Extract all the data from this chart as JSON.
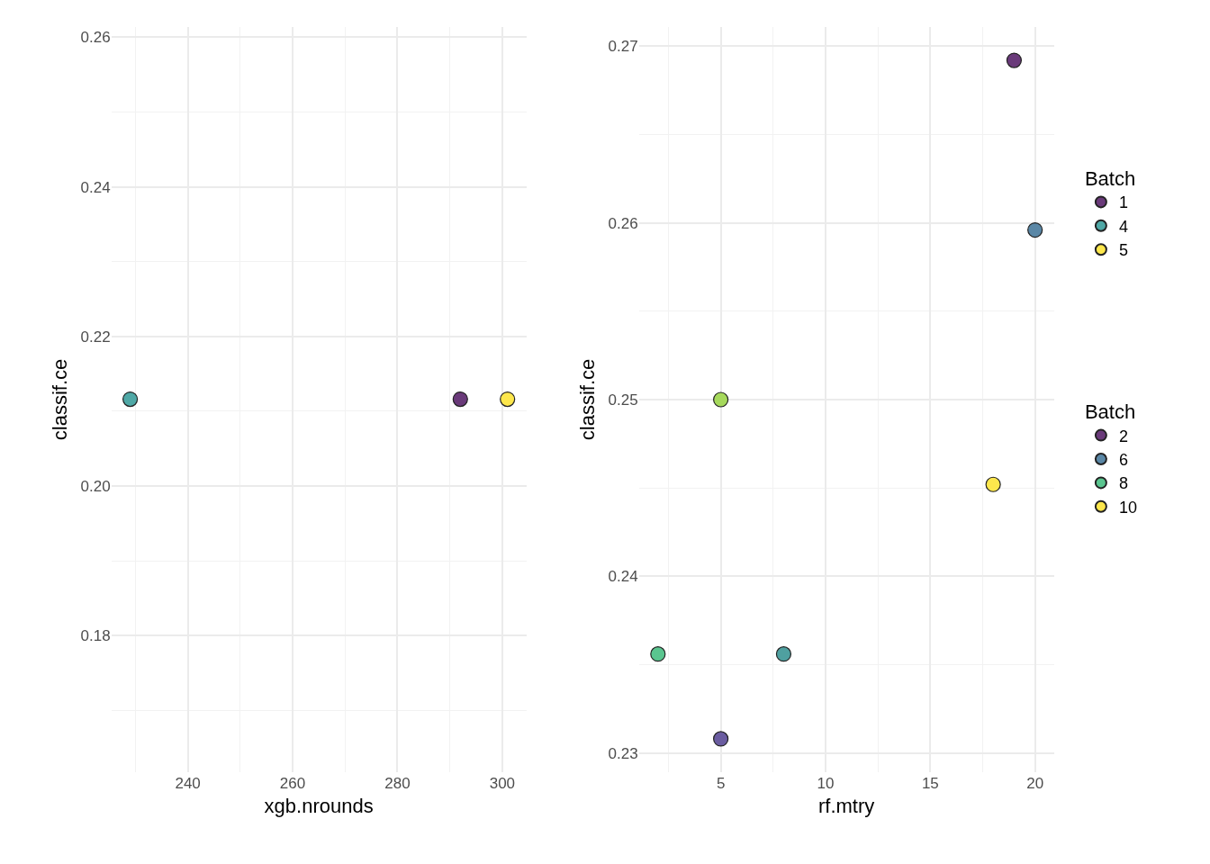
{
  "chart_data": [
    {
      "type": "scatter",
      "xlabel": "xgb.nrounds",
      "ylabel": "classif.ce",
      "xlim": [
        225.4,
        304.6
      ],
      "xticks": [
        240,
        260,
        280,
        300
      ],
      "ylim": [
        0.1617,
        0.2614
      ],
      "yticks": [
        0.18,
        {
          "value": 0.2,
          "label": "0.20"
        },
        0.22,
        0.24,
        0.26
      ],
      "grid": true,
      "legend": "right",
      "legend_title": "Batch",
      "marker": "circle",
      "series": [
        {
          "name": "1",
          "color": "#6a3a7a",
          "x": [
            292
          ],
          "values": [
            0.2116
          ]
        },
        {
          "name": "4",
          "color": "#4fa8a6",
          "x": [
            229
          ],
          "values": [
            0.2116
          ]
        },
        {
          "name": "5",
          "color": "#fde74c",
          "x": [
            301
          ],
          "values": [
            0.2116
          ]
        }
      ]
    },
    {
      "type": "scatter",
      "xlabel": "rf.mtry",
      "ylabel": "classif.ce",
      "xlim": [
        1.09,
        20.9
      ],
      "xticks": [
        5,
        10,
        15,
        20
      ],
      "ylim": [
        0.2289,
        0.2711
      ],
      "yticks": [
        0.23,
        0.24,
        0.25,
        0.26,
        0.27
      ],
      "grid": true,
      "legend": "right",
      "legend_title": "Batch",
      "marker": "circle",
      "series": [
        {
          "name": "2",
          "color": "#6a3a7a",
          "x": [
            19
          ],
          "values": [
            0.2692
          ]
        },
        {
          "name": "6",
          "color": "#5a87a6",
          "x": [
            20
          ],
          "values": [
            0.2596
          ]
        },
        {
          "name": "8",
          "color": "#5ac58f",
          "x": [
            2
          ],
          "values": [
            0.2356
          ]
        },
        {
          "name": "10",
          "color": "#fde74c",
          "x": [
            18
          ],
          "values": [
            0.2452
          ]
        },
        {
          "color": "#6a5ca0",
          "x": [
            5
          ],
          "values": [
            0.2308
          ]
        },
        {
          "color": "#4fa0a0",
          "x": [
            8
          ],
          "values": [
            0.2356
          ]
        },
        {
          "color": "#a6d95c",
          "x": [
            5
          ],
          "values": [
            0.25
          ]
        }
      ]
    }
  ]
}
